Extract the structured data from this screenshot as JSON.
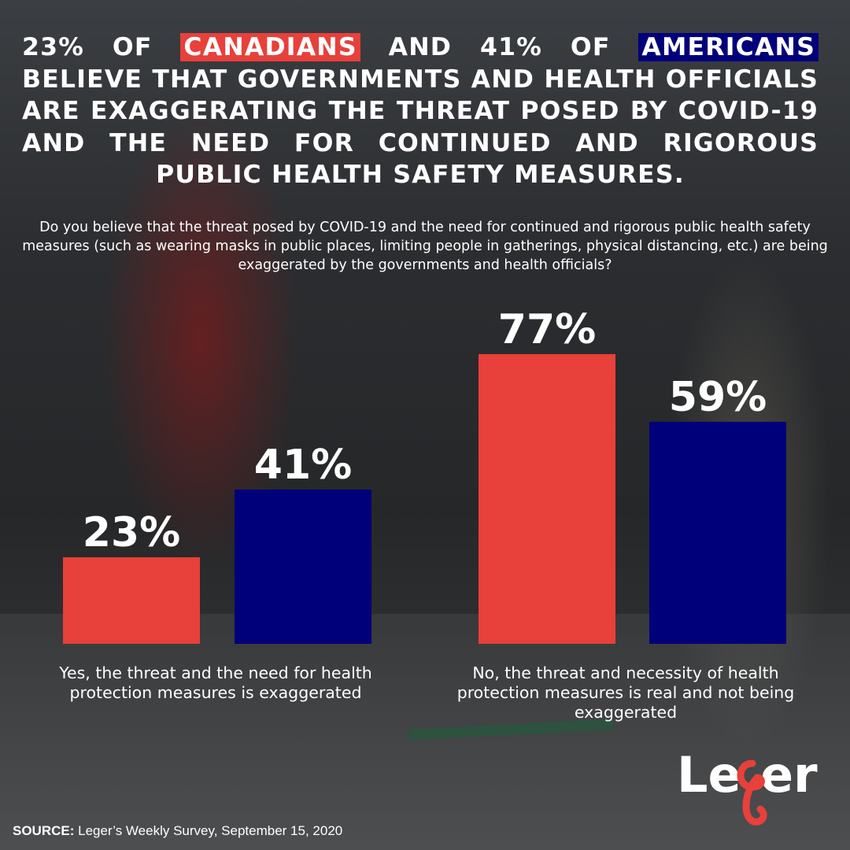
{
  "headline": {
    "part1": "23% OF ",
    "canadians": "CANADIANS",
    "part2": " AND 41% OF ",
    "americans": "AMERICANS",
    "part3": " BELIEVE THAT GOVERNMENTS AND HEALTH OFFICIALS ARE EXAGGERATING THE THREAT POSED BY COVID-19 AND THE NEED FOR CONTINUED AND RIGOROUS PUBLIC HEALTH SAFETY MEASURES."
  },
  "question": "Do you believe that the threat posed by COVID-19 and the need for continued and rigorous public health safety measures (such as wearing masks in public places, limiting people in gatherings, physical distancing, etc.) are being exaggerated by the governments and health officials?",
  "chart_data": {
    "type": "bar",
    "title": "Do you believe that the threat posed by COVID-19 and the need for continued and rigorous public health safety measures are being exaggerated by the governments and health officials?",
    "categories": [
      "Yes, the threat and the need for health protection measures is exaggerated",
      "No, the threat and necessity of health protection measures is real and not being exaggerated"
    ],
    "series": [
      {
        "name": "Canadians",
        "values": [
          23,
          77
        ],
        "labels": [
          "23%",
          "77%"
        ],
        "color": "#e8403a"
      },
      {
        "name": "Americans",
        "values": [
          41,
          59
        ],
        "labels": [
          "41%",
          "59%"
        ],
        "color": "#00007a"
      }
    ],
    "unit": "%",
    "ylim": [
      0,
      100
    ],
    "grid": false,
    "xlabel": "",
    "ylabel": ""
  },
  "logo": {
    "text": "Leger",
    "accent": "#e8403a"
  },
  "source": {
    "label": "SOURCE:",
    "text": " Leger’s Weekly Survey, September 15, 2020"
  },
  "colors": {
    "canada": "#e8403a",
    "usa": "#00007a"
  }
}
